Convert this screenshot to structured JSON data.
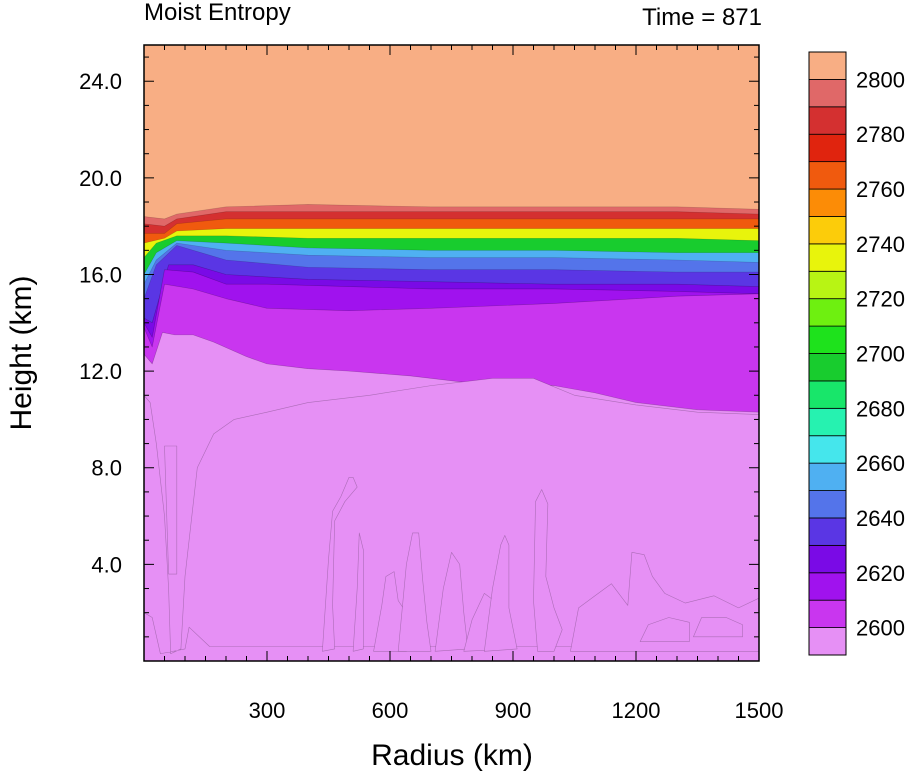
{
  "chart_data": {
    "type": "contour",
    "title_left": "Moist Entropy",
    "title_right": "Time = 871",
    "xlabel": "Radius (km)",
    "ylabel": "Height (km)",
    "xlim": [
      0,
      1500
    ],
    "ylim": [
      0,
      25.5
    ],
    "x_ticks": [
      300,
      600,
      900,
      1200,
      1500
    ],
    "x_tick_labels": [
      "300",
      "600",
      "900",
      "1200",
      "1500"
    ],
    "y_ticks": [
      4,
      8,
      12,
      16,
      20,
      24
    ],
    "y_tick_labels": [
      "4.0",
      "8.0",
      "12.0",
      "16.0",
      "20.0",
      "24.0"
    ],
    "levels": [
      2600,
      2610,
      2620,
      2630,
      2640,
      2650,
      2660,
      2670,
      2680,
      2690,
      2700,
      2710,
      2720,
      2730,
      2740,
      2750,
      2760,
      2770,
      2780,
      2790,
      2800
    ],
    "colorbar_labels": [
      "2600",
      "2620",
      "2640",
      "2660",
      "2680",
      "2700",
      "2720",
      "2740",
      "2760",
      "2780",
      "2800"
    ],
    "colors": [
      "#e690f5",
      "#c936ef",
      "#a012ee",
      "#7a0ae6",
      "#5a36e4",
      "#5474ea",
      "#4fb0f2",
      "#45e6ec",
      "#26f2b0",
      "#18e66a",
      "#18cc2e",
      "#1ee21c",
      "#6ef010",
      "#b8f414",
      "#e8f40c",
      "#fccc0a",
      "#fc8c06",
      "#f05a0e",
      "#e0240e",
      "#d43030",
      "#e06868",
      "#f8ae84"
    ],
    "surfaces": [
      {
        "level": 2640,
        "heights": [
          [
            0,
            15
          ],
          [
            30,
            16.4
          ],
          [
            80,
            17.2
          ],
          [
            200,
            16.6
          ],
          [
            400,
            16.3
          ],
          [
            700,
            16.2
          ],
          [
            1000,
            16.2
          ],
          [
            1300,
            16.1
          ],
          [
            1500,
            16.1
          ]
        ]
      },
      {
        "level": 2650,
        "heights": [
          [
            0,
            15.6
          ],
          [
            30,
            16.6
          ],
          [
            80,
            17.3
          ],
          [
            200,
            17.0
          ],
          [
            400,
            16.8
          ],
          [
            700,
            16.7
          ],
          [
            1000,
            16.7
          ],
          [
            1300,
            16.6
          ],
          [
            1500,
            16.5
          ]
        ]
      },
      {
        "level": 2660,
        "heights": [
          [
            0,
            16.0
          ],
          [
            30,
            16.9
          ],
          [
            80,
            17.4
          ],
          [
            200,
            17.3
          ],
          [
            400,
            17.1
          ],
          [
            700,
            17.0
          ],
          [
            1000,
            17.0
          ],
          [
            1300,
            16.9
          ],
          [
            1500,
            16.9
          ]
        ]
      },
      {
        "level": 2700,
        "heights": [
          [
            0,
            16.7
          ],
          [
            30,
            17.3
          ],
          [
            80,
            17.6
          ],
          [
            200,
            17.6
          ],
          [
            400,
            17.5
          ],
          [
            700,
            17.5
          ],
          [
            1000,
            17.5
          ],
          [
            1300,
            17.5
          ],
          [
            1500,
            17.4
          ]
        ]
      },
      {
        "level": 2740,
        "heights": [
          [
            0,
            17.3
          ],
          [
            50,
            17.5
          ],
          [
            80,
            17.8
          ],
          [
            200,
            17.9
          ],
          [
            400,
            17.9
          ],
          [
            700,
            17.9
          ],
          [
            1000,
            17.9
          ],
          [
            1300,
            17.9
          ],
          [
            1500,
            17.9
          ]
        ]
      },
      {
        "level": 2770,
        "heights": [
          [
            0,
            17.7
          ],
          [
            50,
            17.7
          ],
          [
            80,
            18.1
          ],
          [
            200,
            18.3
          ],
          [
            400,
            18.3
          ],
          [
            700,
            18.3
          ],
          [
            1000,
            18.3
          ],
          [
            1300,
            18.3
          ],
          [
            1500,
            18.3
          ]
        ]
      },
      {
        "level": 2790,
        "heights": [
          [
            0,
            18.1
          ],
          [
            50,
            18.0
          ],
          [
            80,
            18.3
          ],
          [
            200,
            18.6
          ],
          [
            400,
            18.6
          ],
          [
            700,
            18.6
          ],
          [
            1000,
            18.6
          ],
          [
            1300,
            18.6
          ],
          [
            1500,
            18.5
          ]
        ]
      },
      {
        "level": 2800,
        "heights": [
          [
            0,
            18.4
          ],
          [
            50,
            18.3
          ],
          [
            80,
            18.5
          ],
          [
            200,
            18.8
          ],
          [
            400,
            18.9
          ],
          [
            700,
            18.8
          ],
          [
            1000,
            18.8
          ],
          [
            1300,
            18.8
          ],
          [
            1500,
            18.7
          ]
        ]
      }
    ],
    "regions": [
      {
        "level": 2630,
        "outline": [
          [
            0,
            0
          ],
          [
            0,
            14.2
          ],
          [
            20,
            14.0
          ],
          [
            60,
            16.4
          ],
          [
            120,
            16.4
          ],
          [
            200,
            16.0
          ],
          [
            400,
            15.8
          ],
          [
            700,
            15.7
          ],
          [
            1000,
            15.6
          ],
          [
            1300,
            15.6
          ],
          [
            1500,
            15.5
          ],
          [
            1500,
            0
          ]
        ]
      },
      {
        "level": 2620,
        "outline": [
          [
            0,
            0
          ],
          [
            0,
            14.0
          ],
          [
            20,
            13.4
          ],
          [
            50,
            16.2
          ],
          [
            120,
            16.1
          ],
          [
            200,
            15.6
          ],
          [
            300,
            15.6
          ],
          [
            500,
            15.5
          ],
          [
            700,
            15.4
          ],
          [
            1000,
            15.4
          ],
          [
            1300,
            15.3
          ],
          [
            1500,
            15.2
          ],
          [
            1500,
            0
          ]
        ]
      },
      {
        "level": 2610,
        "outline": [
          [
            0,
            0
          ],
          [
            0,
            13.8
          ],
          [
            20,
            13.0
          ],
          [
            50,
            15.6
          ],
          [
            120,
            15.4
          ],
          [
            200,
            15.0
          ],
          [
            300,
            14.6
          ],
          [
            500,
            14.5
          ],
          [
            700,
            14.6
          ],
          [
            1000,
            14.8
          ],
          [
            1300,
            15.1
          ],
          [
            1500,
            15.2
          ],
          [
            1500,
            0
          ]
        ]
      },
      {
        "level": 2600,
        "outline": [
          [
            0,
            0
          ],
          [
            0,
            12.7
          ],
          [
            20,
            12.3
          ],
          [
            45,
            13.6
          ],
          [
            75,
            13.5
          ],
          [
            120,
            13.5
          ],
          [
            170,
            13.2
          ],
          [
            250,
            12.6
          ],
          [
            300,
            12.3
          ],
          [
            400,
            12.1
          ],
          [
            500,
            12.0
          ],
          [
            650,
            11.8
          ],
          [
            800,
            11.5
          ],
          [
            900,
            11.5
          ],
          [
            1000,
            11.4
          ],
          [
            1100,
            11.1
          ],
          [
            1200,
            10.7
          ],
          [
            1350,
            10.4
          ],
          [
            1500,
            10.3
          ],
          [
            1500,
            0
          ]
        ]
      },
      {
        "level": 2590,
        "outline": [
          [
            0,
            2.0
          ],
          [
            0,
            11.0
          ],
          [
            15,
            10.7
          ],
          [
            30,
            9.0
          ],
          [
            50,
            6.0
          ],
          [
            60,
            3.0
          ],
          [
            65,
            0.3
          ],
          [
            90,
            0.5
          ],
          [
            100,
            3.5
          ],
          [
            130,
            8.0
          ],
          [
            170,
            9.4
          ],
          [
            220,
            10.0
          ],
          [
            300,
            10.3
          ],
          [
            400,
            10.7
          ],
          [
            550,
            11.0
          ],
          [
            700,
            11.4
          ],
          [
            850,
            11.7
          ],
          [
            950,
            11.7
          ],
          [
            1050,
            11.0
          ],
          [
            1200,
            10.6
          ],
          [
            1350,
            10.3
          ],
          [
            1500,
            10.2
          ],
          [
            1500,
            0.6
          ],
          [
            160,
            0.6
          ],
          [
            110,
            1.4
          ],
          [
            100,
            0.5
          ],
          [
            40,
            0.3
          ],
          [
            20,
            1.8
          ]
        ]
      },
      {
        "level": 2600,
        "outline": [
          [
            50,
            8.9
          ],
          [
            80,
            8.9
          ],
          [
            80,
            3.6
          ],
          [
            60,
            3.6
          ]
        ]
      },
      {
        "level": 2600,
        "outline": [
          [
            435,
            0.4
          ],
          [
            450,
            4.2
          ],
          [
            460,
            6.2
          ],
          [
            480,
            6.8
          ],
          [
            500,
            7.6
          ],
          [
            510,
            7.6
          ],
          [
            520,
            7.2
          ],
          [
            490,
            6.6
          ],
          [
            465,
            5.8
          ],
          [
            460,
            2.3
          ],
          [
            465,
            0.5
          ]
        ]
      },
      {
        "level": 2600,
        "outline": [
          [
            510,
            0.4
          ],
          [
            520,
            3.0
          ],
          [
            525,
            5.3
          ],
          [
            535,
            4.6
          ],
          [
            535,
            0.5
          ]
        ]
      },
      {
        "level": 2600,
        "outline": [
          [
            560,
            0.4
          ],
          [
            580,
            2.3
          ],
          [
            590,
            3.5
          ],
          [
            610,
            3.7
          ],
          [
            620,
            2.5
          ],
          [
            640,
            2.0
          ],
          [
            640,
            0.4
          ]
        ]
      },
      {
        "level": 2600,
        "outline": [
          [
            620,
            0.4
          ],
          [
            640,
            4.0
          ],
          [
            655,
            5.3
          ],
          [
            670,
            5.3
          ],
          [
            680,
            3.3
          ],
          [
            690,
            1.6
          ],
          [
            700,
            0.4
          ]
        ]
      },
      {
        "level": 2600,
        "outline": [
          [
            710,
            0.4
          ],
          [
            730,
            3.0
          ],
          [
            750,
            4.5
          ],
          [
            770,
            4.0
          ],
          [
            780,
            2.0
          ],
          [
            790,
            0.5
          ]
        ]
      },
      {
        "level": 2600,
        "outline": [
          [
            780,
            0.4
          ],
          [
            800,
            1.7
          ],
          [
            830,
            2.8
          ],
          [
            870,
            2.3
          ],
          [
            880,
            1.2
          ],
          [
            900,
            0.5
          ]
        ]
      },
      {
        "level": 2600,
        "outline": [
          [
            830,
            0.4
          ],
          [
            850,
            3.0
          ],
          [
            870,
            4.8
          ],
          [
            880,
            5.2
          ],
          [
            890,
            4.8
          ],
          [
            890,
            2.2
          ],
          [
            910,
            0.5
          ]
        ]
      },
      {
        "level": 2600,
        "outline": [
          [
            960,
            0.4
          ],
          [
            950,
            2.5
          ],
          [
            955,
            6.6
          ],
          [
            970,
            7.1
          ],
          [
            985,
            6.5
          ],
          [
            980,
            3.5
          ],
          [
            1000,
            2.2
          ],
          [
            1020,
            1.3
          ],
          [
            1000,
            0.4
          ]
        ]
      },
      {
        "level": 2600,
        "outline": [
          [
            1040,
            0.4
          ],
          [
            1060,
            2.2
          ],
          [
            1100,
            2.7
          ],
          [
            1140,
            3.2
          ],
          [
            1180,
            2.3
          ],
          [
            1190,
            4.5
          ],
          [
            1220,
            4.4
          ],
          [
            1240,
            3.5
          ],
          [
            1270,
            2.8
          ],
          [
            1320,
            2.4
          ],
          [
            1390,
            2.7
          ],
          [
            1450,
            2.2
          ],
          [
            1500,
            2.6
          ],
          [
            1500,
            0.4
          ]
        ]
      },
      {
        "level": 2590,
        "outline": [
          [
            1210,
            0.8
          ],
          [
            1230,
            1.5
          ],
          [
            1280,
            1.8
          ],
          [
            1330,
            1.6
          ],
          [
            1330,
            0.8
          ]
        ]
      },
      {
        "level": 2590,
        "outline": [
          [
            1340,
            1.0
          ],
          [
            1360,
            1.8
          ],
          [
            1420,
            1.8
          ],
          [
            1460,
            1.5
          ],
          [
            1460,
            1.0
          ]
        ]
      }
    ]
  }
}
